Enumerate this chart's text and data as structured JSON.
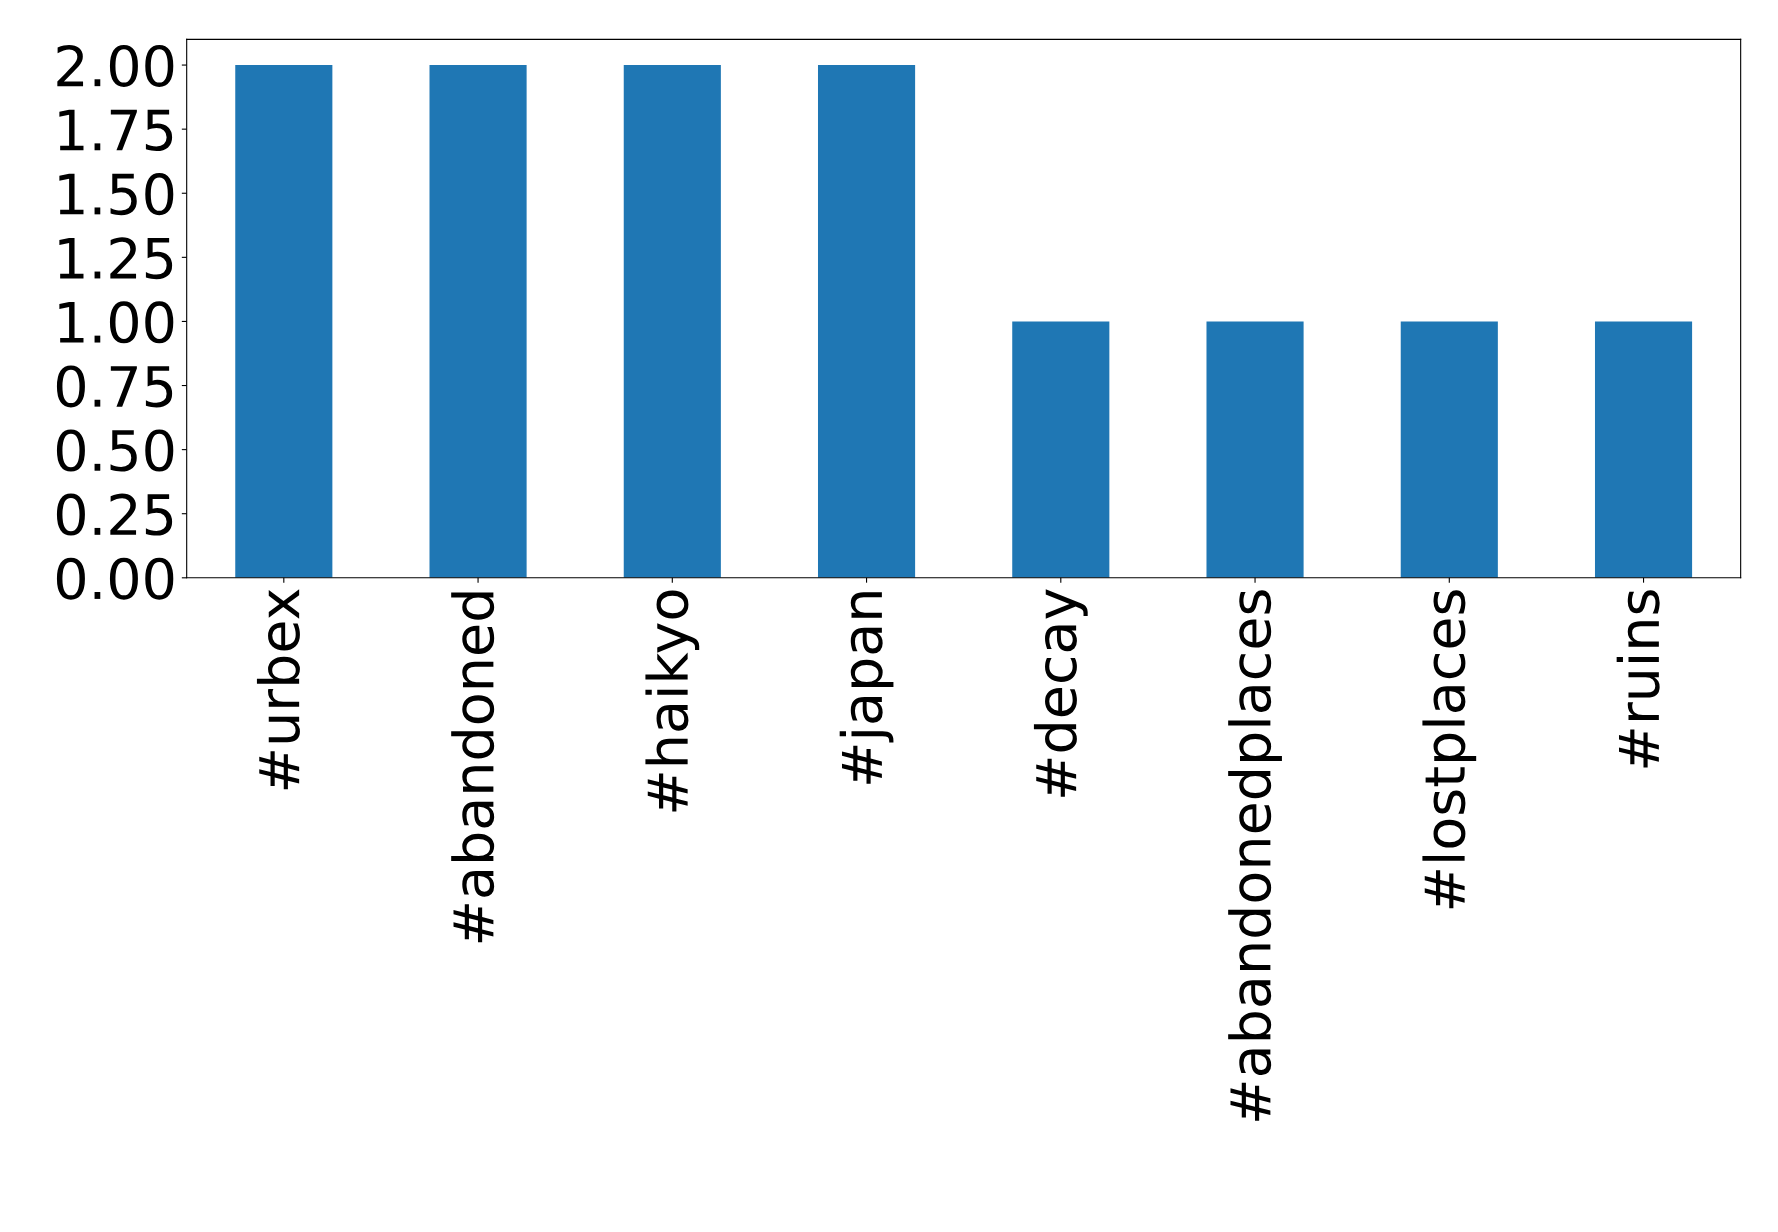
{
  "chart_data": {
    "type": "bar",
    "categories": [
      "#urbex",
      "#abandoned",
      "#haikyo",
      "#japan",
      "#decay",
      "#abandonedplaces",
      "#lostplaces",
      "#ruins"
    ],
    "values": [
      2,
      2,
      2,
      2,
      1,
      1,
      1,
      1
    ],
    "color": "#1f77b4",
    "ylim": [
      0,
      2.1
    ],
    "yticks": [
      {
        "value": 0,
        "label": "0.00"
      },
      {
        "value": 0.25,
        "label": "0.25"
      },
      {
        "value": 0.5,
        "label": "0.50"
      },
      {
        "value": 0.75,
        "label": "0.75"
      },
      {
        "value": 1,
        "label": "1.00"
      },
      {
        "value": 1.25,
        "label": "1.25"
      },
      {
        "value": 1.5,
        "label": "1.50"
      },
      {
        "value": 1.75,
        "label": "1.75"
      },
      {
        "value": 2,
        "label": "2.00"
      }
    ],
    "grid": false
  }
}
